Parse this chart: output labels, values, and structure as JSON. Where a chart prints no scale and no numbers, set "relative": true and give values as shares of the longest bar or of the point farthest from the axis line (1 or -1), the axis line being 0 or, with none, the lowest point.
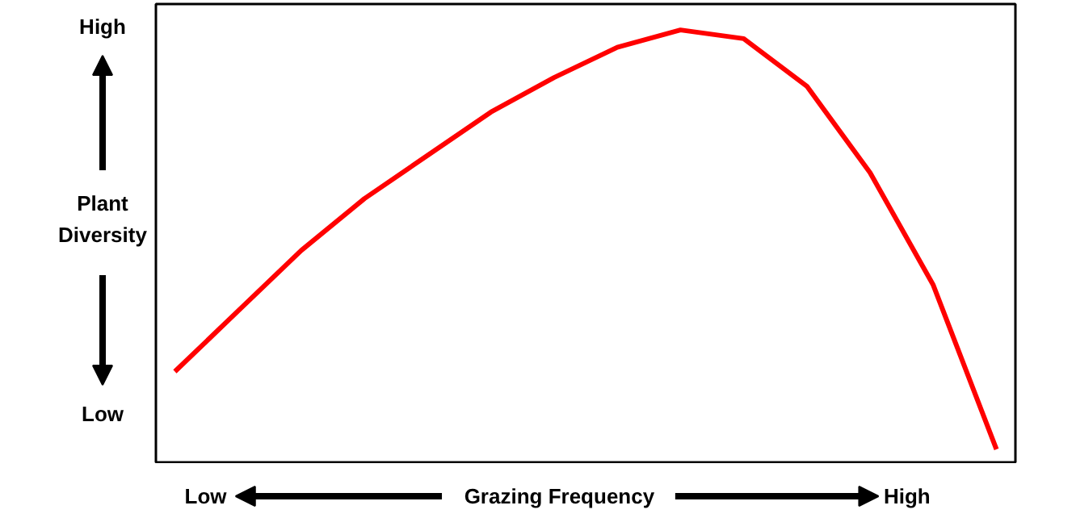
{
  "chart_data": {
    "type": "line",
    "relative": true,
    "xlabel": "Grazing Frequency",
    "ylabel": "Plant Diversity",
    "annotations": [
      "High",
      "Low",
      "Low",
      "High"
    ],
    "categories": [
      null,
      null,
      null,
      null,
      null,
      null,
      null,
      null,
      null,
      null,
      null,
      null,
      null,
      null
    ],
    "series": [
      {
        "color": "#ff0000",
        "values": [
          0.21,
          0.35,
          0.49,
          0.61,
          0.71,
          0.81,
          0.89,
          0.96,
          1.0,
          0.98,
          0.87,
          0.67,
          0.41,
          0.03
        ]
      }
    ],
    "grid": false,
    "marker": "none",
    "line_style": "solid"
  }
}
